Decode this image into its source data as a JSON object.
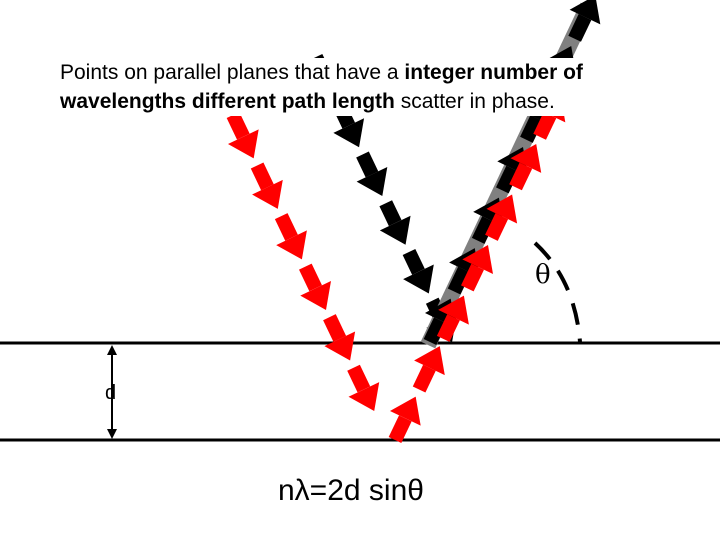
{
  "caption": {
    "part1": "Points on parallel planes that have a ",
    "bold1": "integer number of wavelengths different path length",
    "part2": " scatter in phase."
  },
  "labels": {
    "spacing": "d",
    "angle": "θ"
  },
  "equation": "nλ=2d sinθ",
  "colors": {
    "incident_top": "#000000",
    "incident_bottom": "#ff0000",
    "reflected_shadow": "#808080",
    "planes": "#000000"
  },
  "icons": {
    "ray_arrows": "arrow-segment-icon",
    "angle_arc": "dashed-arc-icon",
    "spacing_marker": "double-arrow-icon"
  }
}
